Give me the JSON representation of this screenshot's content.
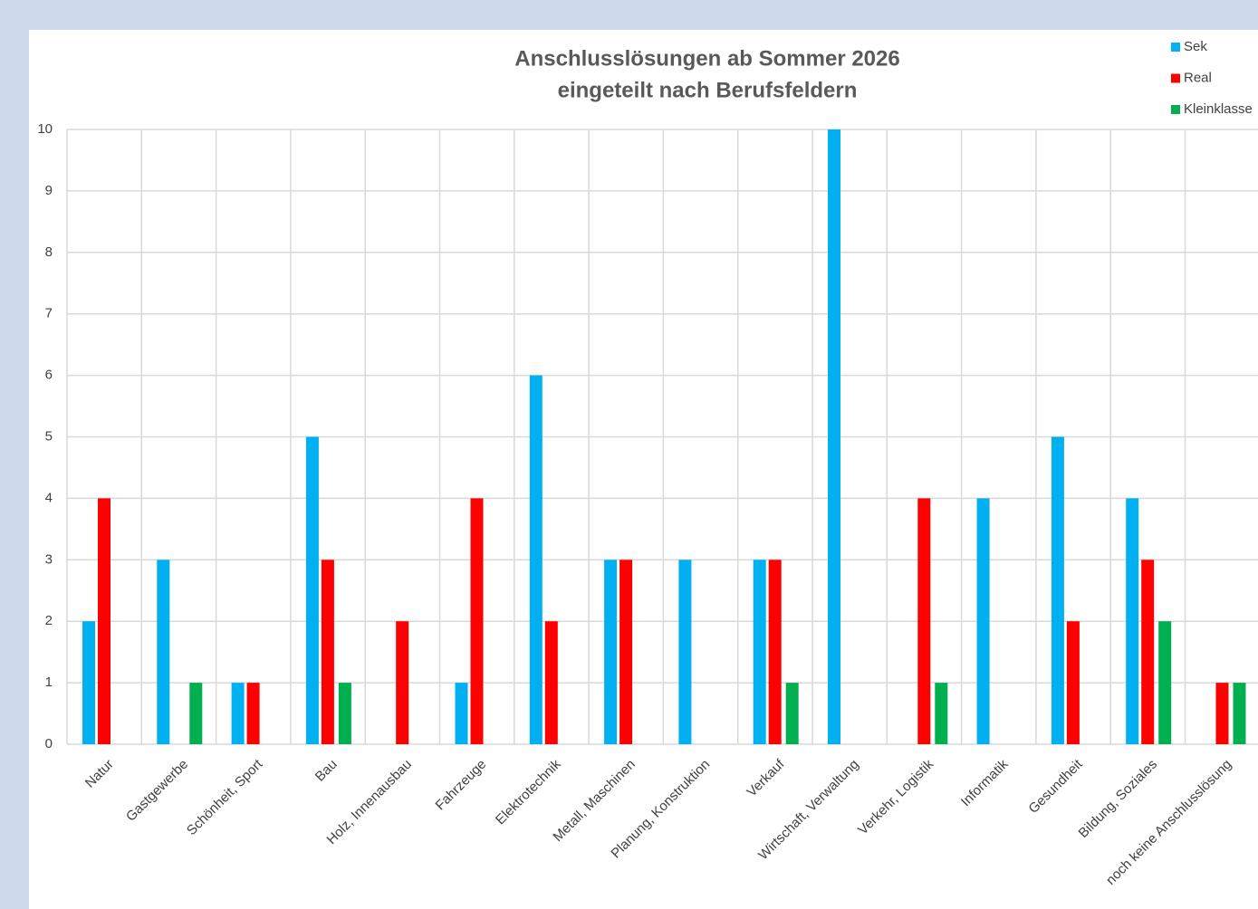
{
  "chart_data": {
    "type": "bar",
    "title": "Anschlusslösungen ab Sommer 2026",
    "subtitle": "eingeteilt nach Berufsfeldern",
    "categories": [
      "Natur",
      "Gastgewerbe",
      "Schönheit, Sport",
      "Bau",
      "Holz, Innenausbau",
      "Fahrzeuge",
      "Elektrotechnik",
      "Metall, Maschinen",
      "Planung, Konstruktion",
      "Verkauf",
      "Wirtschaft, Verwaltung",
      "Verkehr, Logistik",
      "Informatik",
      "Gesundheit",
      "Bildung, Soziales",
      "noch keine Anschlusslösung"
    ],
    "series": [
      {
        "name": "Sek",
        "color": "#00b0f0",
        "values": [
          2,
          3,
          1,
          5,
          0,
          1,
          6,
          3,
          3,
          3,
          10,
          0,
          4,
          5,
          4,
          0
        ]
      },
      {
        "name": "Real",
        "color": "#ff0000",
        "values": [
          4,
          0,
          1,
          3,
          2,
          4,
          2,
          3,
          0,
          3,
          0,
          4,
          0,
          2,
          3,
          1
        ]
      },
      {
        "name": "Kleinklasse",
        "color": "#00b050",
        "values": [
          0,
          1,
          0,
          1,
          0,
          0,
          0,
          0,
          0,
          1,
          0,
          1,
          0,
          0,
          2,
          1
        ]
      }
    ],
    "ylim": [
      0,
      10
    ],
    "yticks": [
      0,
      1,
      2,
      3,
      4,
      5,
      6,
      7,
      8,
      9,
      10
    ],
    "grid": true,
    "legend": "top-right"
  }
}
